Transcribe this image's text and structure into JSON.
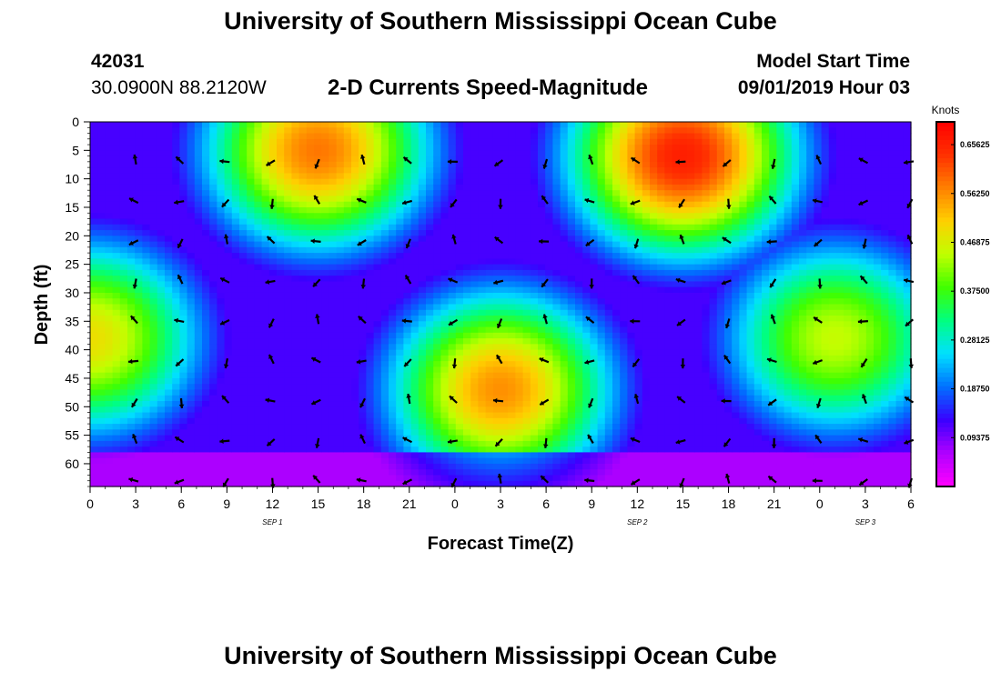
{
  "header": {
    "title": "University of Southern Mississippi Ocean Cube",
    "station_id": "42031",
    "coordinates": "30.0900N 88.2120W",
    "subtitle": "2-D Currents Speed-Magnitude",
    "model_start_label": "Model Start Time",
    "model_start_value": "09/01/2019 Hour 03"
  },
  "footer": {
    "title": "University of Southern Mississippi Ocean Cube"
  },
  "chart_data": {
    "type": "heatmap",
    "title": "2-D Currents Speed-Magnitude",
    "xlabel": "Forecast Time(Z)",
    "ylabel": "Depth (ft)",
    "x_tick_labels": [
      "0",
      "3",
      "6",
      "9",
      "12",
      "15",
      "18",
      "21",
      "0",
      "3",
      "6",
      "9",
      "12",
      "15",
      "18",
      "21",
      "0",
      "3",
      "6"
    ],
    "date_labels": [
      {
        "label": "SEP 1",
        "tick_index": 4
      },
      {
        "label": "SEP 2",
        "tick_index": 12
      },
      {
        "label": "SEP 3",
        "tick_index": 17
      }
    ],
    "x_range_hours": [
      0,
      54
    ],
    "y_tick_labels": [
      "0",
      "5",
      "10",
      "15",
      "20",
      "25",
      "30",
      "35",
      "40",
      "45",
      "50",
      "55",
      "60"
    ],
    "y_range_ft": [
      0,
      64
    ],
    "y_inverted": true,
    "colorbar": {
      "title": "Knots",
      "labels": [
        "0.65625",
        "0.56250",
        "0.46875",
        "0.37500",
        "0.28125",
        "0.18750",
        "0.09375"
      ],
      "range": [
        0.0,
        0.7
      ],
      "colors": [
        "#ff00ff",
        "#b000ff",
        "#3a00ff",
        "#0070ff",
        "#00e0ff",
        "#00ff80",
        "#40ff00",
        "#c0ff00",
        "#ffd000",
        "#ff8000",
        "#ff3000",
        "#ff0000"
      ]
    },
    "speed_blobs_knots": [
      {
        "name": "",
        "hour": 15,
        "depth": 5,
        "peak": 0.58
      },
      {
        "name": "",
        "hour": 39,
        "depth": 6,
        "peak": 0.66
      },
      {
        "name": "",
        "hour": 27,
        "depth": 47,
        "peak": 0.56
      },
      {
        "name": "",
        "hour": 0,
        "depth": 38,
        "peak": 0.49
      },
      {
        "name": "",
        "hour": 49,
        "depth": 38,
        "peak": 0.45
      }
    ],
    "vectors": {
      "hours": [
        3,
        6,
        9,
        12,
        15,
        18,
        21,
        24,
        27,
        30,
        33,
        36,
        39,
        42,
        45,
        48,
        51,
        54
      ],
      "depths_ft": [
        7,
        14,
        21,
        28,
        35,
        42,
        49,
        56,
        63
      ],
      "note": "current direction arrows (unit length) in degrees, 0=east, 90=north"
    }
  }
}
